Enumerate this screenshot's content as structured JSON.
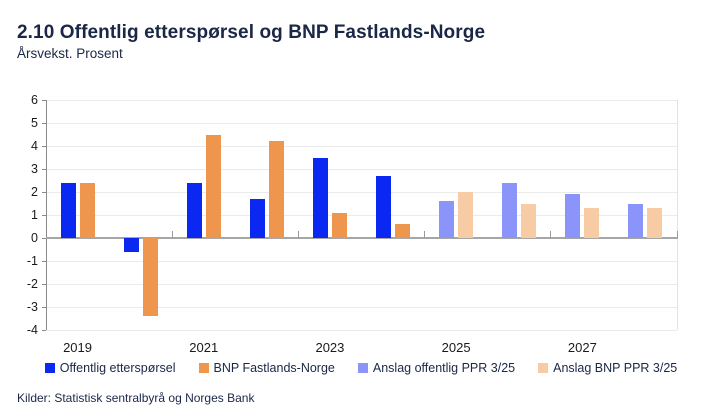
{
  "header": {
    "title": "2.10 Offentlig etterspørsel og BNP Fastlands-Norge",
    "subtitle": "Årsvekst. Prosent"
  },
  "footer": {
    "source": "Kilder: Statistisk sentralbyrå og Norges Bank"
  },
  "colors": {
    "public_demand": "#0B27F2",
    "gdp_mainland": "#EE964D",
    "forecast_public": "#8B94F8",
    "forecast_gdp": "#F7CCA4",
    "title_navy": "#1A2747",
    "gridline": "#EBEBEB",
    "zero_line": "#A6A6A6"
  },
  "chart_data": {
    "type": "bar",
    "title": "2.10 Offentlig etterspørsel og BNP Fastlands-Norge",
    "subtitle": "Årsvekst. Prosent",
    "categories": [
      2019,
      2020,
      2021,
      2022,
      2023,
      2024,
      2025,
      2026,
      2027,
      2028
    ],
    "x_tick_labels": [
      "2019",
      "2021",
      "2023",
      "2025",
      "2027"
    ],
    "series": [
      {
        "name": "Offentlig etterspørsel",
        "color": "#0B27F2",
        "values": [
          2.4,
          -0.6,
          2.4,
          1.7,
          3.5,
          2.7,
          null,
          null,
          null,
          null
        ]
      },
      {
        "name": "BNP Fastlands-Norge",
        "color": "#EE964D",
        "values": [
          2.4,
          -3.4,
          4.5,
          4.2,
          1.1,
          0.6,
          null,
          null,
          null,
          null
        ]
      },
      {
        "name": "Anslag offentlig PPR 3/25",
        "color": "#8B94F8",
        "values": [
          null,
          null,
          null,
          null,
          null,
          null,
          1.6,
          2.4,
          1.9,
          1.5
        ]
      },
      {
        "name": "Anslag BNP PPR 3/25",
        "color": "#F7CCA4",
        "values": [
          null,
          null,
          null,
          null,
          null,
          null,
          2.0,
          1.5,
          1.3,
          1.3
        ]
      }
    ],
    "xlabel": "",
    "ylabel": "",
    "ylim": [
      -4,
      6
    ],
    "y_ticks": [
      6,
      5,
      4,
      3,
      2,
      1,
      0,
      -1,
      -2,
      -3,
      -4
    ],
    "grid": true,
    "legend_position": "bottom"
  }
}
